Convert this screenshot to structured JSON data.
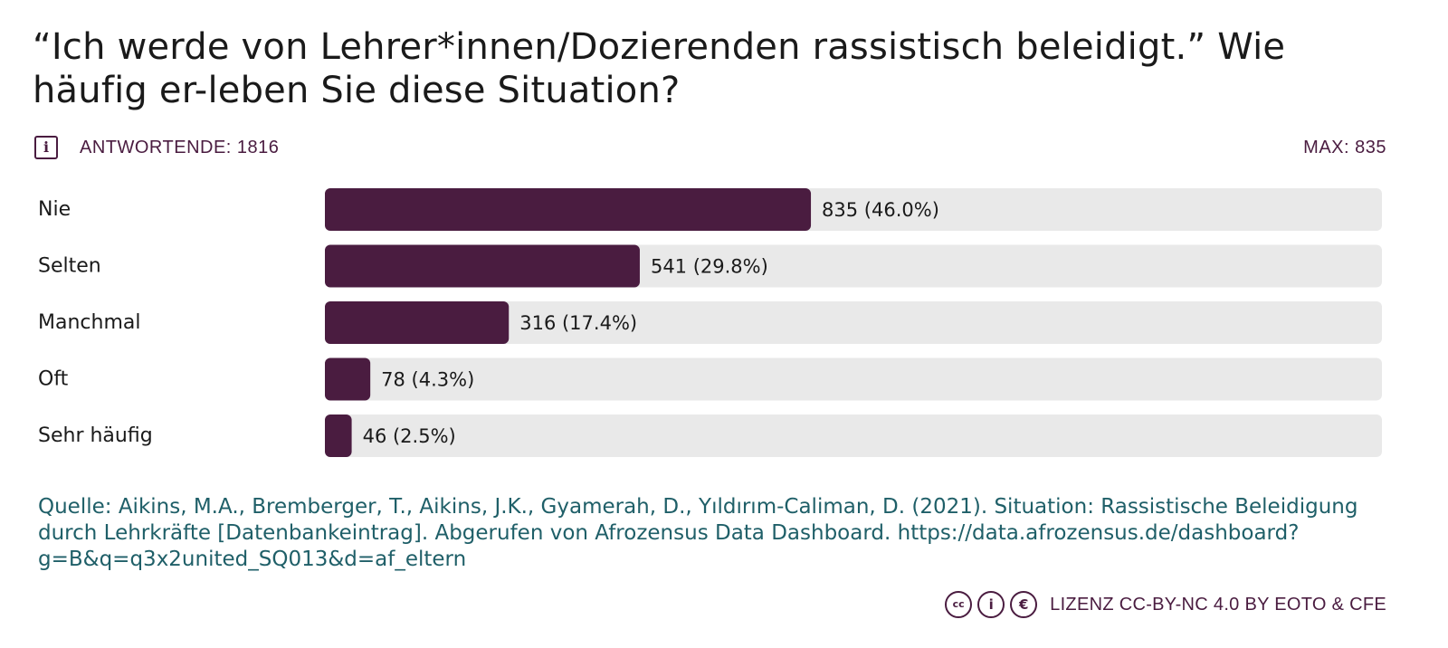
{
  "title": "“Ich werde von Lehrer*innen/Dozierenden rassistisch beleidigt.” Wie häufig er-leben Sie diese Situation?",
  "respondents": "ANTWORTENDE: 1816",
  "max_label": "MAX: 835",
  "info_icon": "i",
  "chart_data": {
    "type": "bar",
    "orientation": "horizontal",
    "categories": [
      "Nie",
      "Selten",
      "Manchmal",
      "Oft",
      "Sehr häufig"
    ],
    "values": [
      835,
      541,
      316,
      78,
      46
    ],
    "value_labels": [
      "835 (46.0%)",
      "541 (29.8%)",
      "316 (17.4%)",
      "78 (4.3%)",
      "46 (2.5%)"
    ],
    "xlim": [
      0,
      1816
    ],
    "bar_color": "#4a1c40",
    "track_color": "#e9e9e9"
  },
  "source": "Quelle: Aikins, M.A., Bremberger, T., Aikins, J.K., Gyamerah, D., Yıldırım-Caliman, D. (2021). Situation: Rassistische Beleidigung durch Lehrkräfte [Datenbankeintrag]. Abgerufen von Afrozensus Data Dashboard. https://data.afrozensus.de/dashboard?g=B&q=q3x2united_SQ013&d=af_eltern",
  "license": {
    "icons": [
      "cc-icon",
      "by-icon",
      "nc-icon"
    ],
    "icon_glyphs": [
      "cc",
      "i",
      "€"
    ],
    "text": "LIZENZ CC-BY-NC 4.0 BY EOTO & CFE"
  }
}
